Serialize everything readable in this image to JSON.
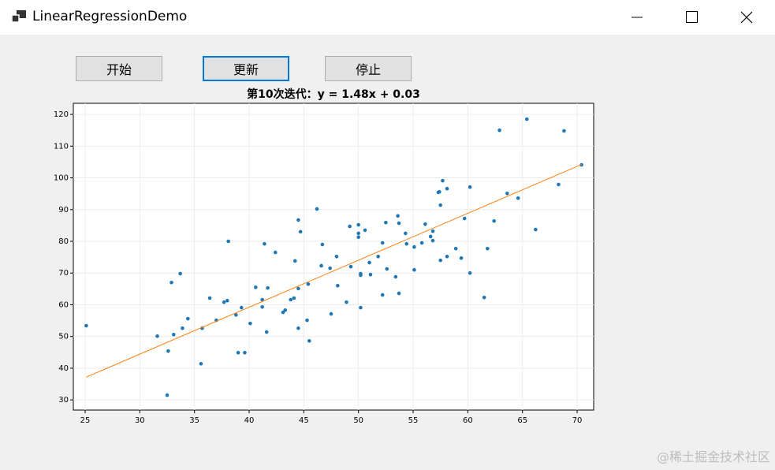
{
  "window": {
    "title": "LinearRegressionDemo"
  },
  "buttons": [
    "开始",
    "更新",
    "停止"
  ],
  "watermark": "@稀土掘金技术社区",
  "chart_data": {
    "type": "scatter",
    "title": "第10次迭代：y = 1.48x + 0.03",
    "x": [
      25.1,
      31.6,
      32.6,
      32.5,
      32.9,
      33.1,
      33.7,
      33.9,
      34.4,
      35.6,
      35.7,
      36.4,
      37.0,
      37.7,
      38.0,
      38.1,
      38.8,
      39.0,
      39.3,
      39.6,
      40.1,
      40.6,
      41.2,
      41.2,
      41.4,
      41.6,
      41.7,
      42.4,
      43.1,
      43.3,
      43.8,
      44.1,
      44.2,
      44.5,
      44.5,
      44.5,
      44.7,
      45.3,
      45.4,
      45.5,
      46.2,
      46.6,
      46.7,
      47.4,
      47.5,
      48.0,
      48.1,
      48.9,
      49.2,
      49.3,
      50.0,
      50.0,
      50.0,
      50.2,
      50.2,
      50.2,
      50.6,
      51.0,
      51.1,
      51.8,
      52.2,
      52.2,
      52.5,
      52.6,
      53.4,
      53.6,
      53.7,
      53.7,
      54.3,
      54.4,
      55.1,
      55.1,
      55.8,
      56.1,
      56.6,
      56.8,
      56.8,
      57.3,
      57.4,
      57.5,
      57.5,
      57.7,
      58.1,
      58.1,
      58.9,
      59.4,
      59.7,
      60.2,
      60.2,
      61.5,
      61.8,
      62.4,
      62.9,
      63.6,
      64.6,
      65.4,
      66.2,
      68.3,
      68.8,
      70.4
    ],
    "values": [
      53.4,
      50.1,
      45.4,
      31.5,
      67.0,
      50.6,
      69.8,
      52.6,
      55.6,
      41.4,
      52.6,
      62.1,
      55.1,
      60.8,
      61.3,
      80.0,
      56.8,
      44.9,
      59.1,
      44.9,
      54.1,
      65.5,
      59.3,
      61.6,
      79.2,
      51.4,
      65.3,
      76.5,
      57.6,
      58.3,
      61.6,
      62.1,
      73.8,
      65.1,
      52.6,
      86.7,
      83.0,
      55.1,
      66.5,
      48.6,
      90.2,
      72.3,
      79.0,
      71.5,
      57.1,
      75.2,
      66.0,
      60.8,
      84.7,
      72.0,
      85.2,
      82.5,
      81.3,
      69.8,
      59.1,
      69.3,
      83.5,
      73.3,
      69.5,
      75.2,
      79.5,
      63.1,
      85.9,
      71.3,
      68.8,
      88.0,
      85.7,
      63.6,
      82.5,
      79.2,
      71.0,
      78.2,
      79.5,
      85.4,
      81.5,
      83.2,
      80.2,
      95.4,
      95.6,
      91.4,
      74.0,
      99.1,
      96.6,
      75.2,
      77.7,
      74.7,
      87.2,
      97.1,
      70.0,
      62.3,
      77.7,
      86.4,
      115.0,
      95.1,
      93.6,
      118.5,
      83.7,
      97.9,
      114.8,
      104.1
    ],
    "color": "#1f77b4",
    "line": {
      "x": [
        25.1,
        70.4
      ],
      "values": [
        37.18,
        104.22
      ],
      "color": "#ff7f0e"
    },
    "xlim": [
      23.92,
      71.51
    ],
    "ylim": [
      26.8,
      123.5
    ],
    "xticks": [
      25,
      30,
      35,
      40,
      45,
      50,
      55,
      60,
      65,
      70
    ],
    "yticks": [
      30,
      40,
      50,
      60,
      70,
      80,
      90,
      100,
      110,
      120
    ],
    "grid": true
  }
}
